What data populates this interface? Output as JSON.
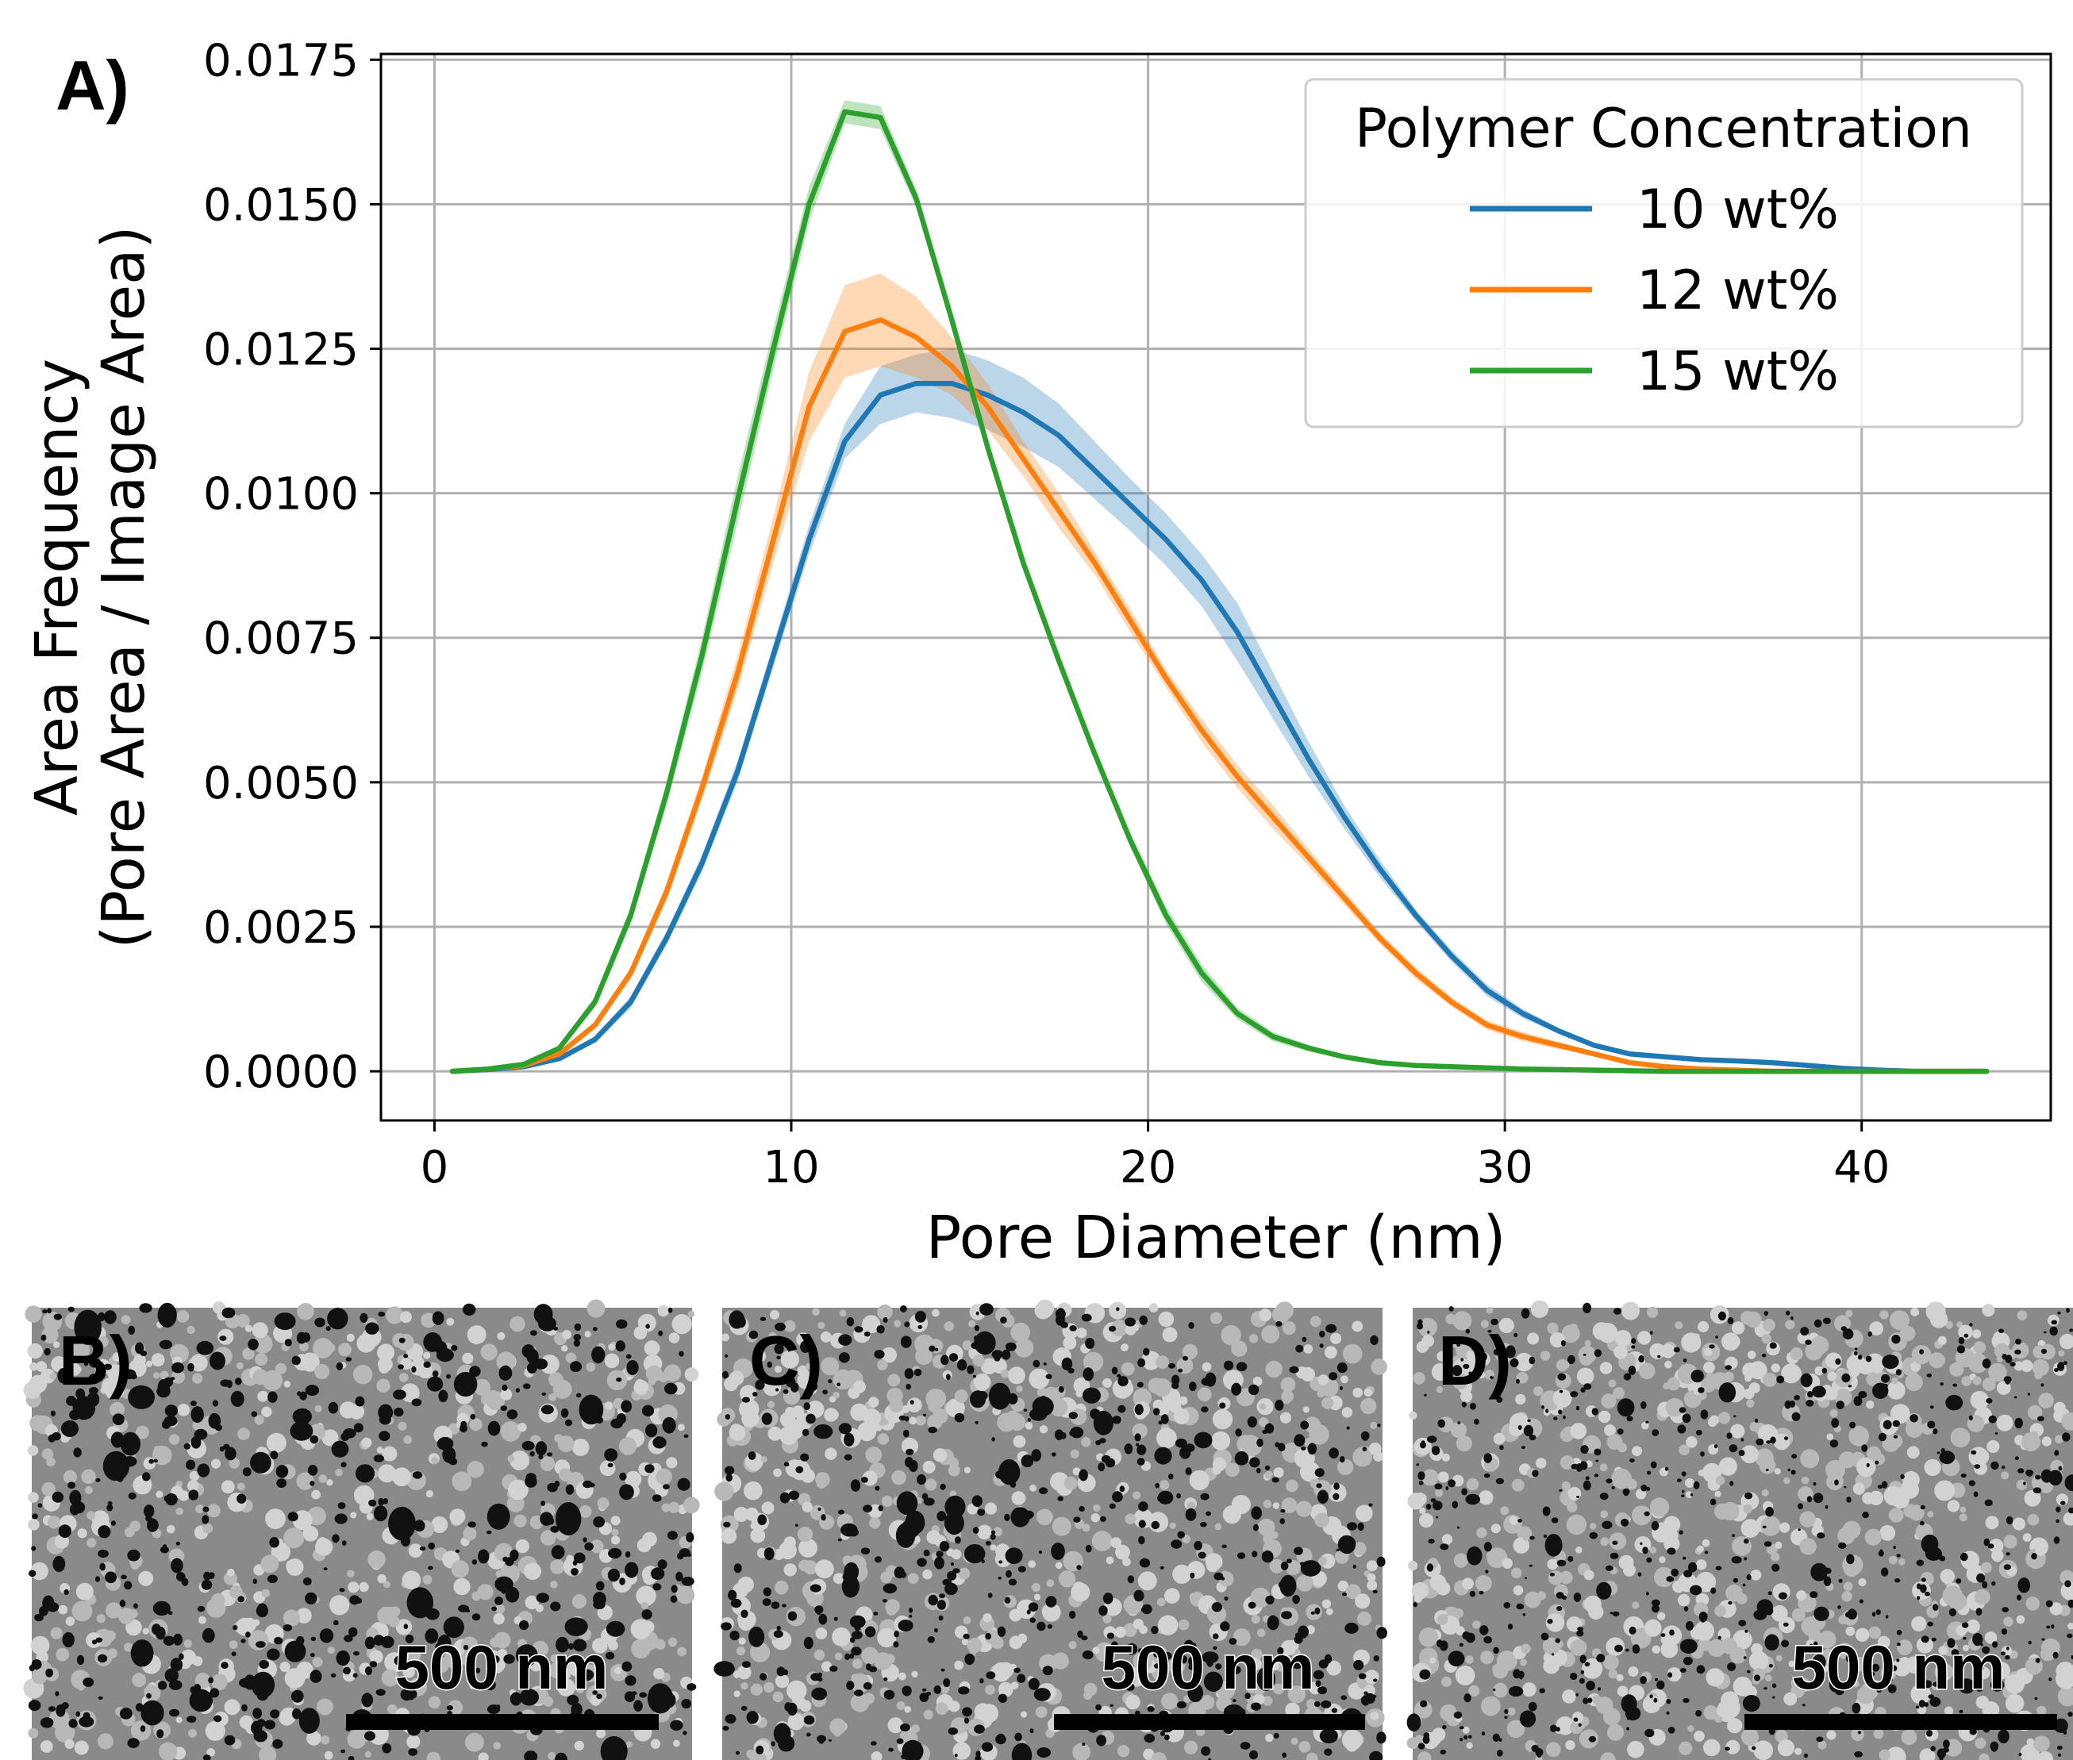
{
  "figure": {
    "panel_a_label": "A)",
    "sem_panels": [
      {
        "label": "B)",
        "scale_bar_text": "500 nm",
        "seed": 7,
        "pore_density": 1.0,
        "pore_size": 1.25
      },
      {
        "label": "C)",
        "scale_bar_text": "500 nm",
        "seed": 19,
        "pore_density": 1.1,
        "pore_size": 1.0
      },
      {
        "label": "D)",
        "scale_bar_text": "500 nm",
        "seed": 31,
        "pore_density": 1.2,
        "pore_size": 0.8
      }
    ]
  },
  "chart_data": {
    "type": "line",
    "title": "",
    "xlabel": "Pore Diameter (nm)",
    "ylabel_lines": [
      "Area Frequency",
      "(Pore Area / Image Area)"
    ],
    "xlim": [
      -1.5,
      45.3
    ],
    "ylim": [
      -0.00085,
      0.0176
    ],
    "xticks": [
      0,
      10,
      20,
      30,
      40
    ],
    "yticks": [
      "0.0000",
      "0.0025",
      "0.0050",
      "0.0075",
      "0.0100",
      "0.0125",
      "0.0150",
      "0.0175"
    ],
    "grid": true,
    "legend": {
      "title": "Polymer Concentration",
      "placement": "top-right"
    },
    "x": [
      0.5,
      1.5,
      2.5,
      3.5,
      4.5,
      5.5,
      6.5,
      7.5,
      8.5,
      9.5,
      10.5,
      11.5,
      12.5,
      13.5,
      14.5,
      15.5,
      16.5,
      17.5,
      18.5,
      19.5,
      20.5,
      21.5,
      22.5,
      23.5,
      24.5,
      25.5,
      26.5,
      27.5,
      28.5,
      29.5,
      30.5,
      31.5,
      32.5,
      33.5,
      34.5,
      35.5,
      36.5,
      37.5,
      38.5,
      39.5,
      40.5,
      41.5,
      42.5,
      43.5
    ],
    "series": [
      {
        "name": "10 wt%",
        "color": "#1f77b4",
        "values": [
          0.0,
          3e-05,
          8e-05,
          0.00022,
          0.00055,
          0.0012,
          0.0023,
          0.0036,
          0.0052,
          0.0072,
          0.0092,
          0.0109,
          0.0117,
          0.0119,
          0.0119,
          0.0117,
          0.0114,
          0.011,
          0.0104,
          0.0098,
          0.0092,
          0.0085,
          0.0076,
          0.0065,
          0.0054,
          0.0044,
          0.0035,
          0.0027,
          0.002,
          0.0014,
          0.001,
          0.0007,
          0.00045,
          0.0003,
          0.00025,
          0.0002,
          0.00018,
          0.00015,
          0.0001,
          5e-05,
          2e-05,
          0.0,
          0.0,
          0.0
        ],
        "band": [
          0.0,
          1e-05,
          2e-05,
          4e-05,
          6e-05,
          0.0001,
          0.00012,
          0.00015,
          0.00018,
          0.0002,
          0.00025,
          0.0003,
          0.0005,
          0.0005,
          0.0006,
          0.0006,
          0.0006,
          0.00055,
          0.0005,
          0.00045,
          0.00045,
          0.00045,
          0.0005,
          0.0004,
          0.0003,
          0.0002,
          0.00015,
          0.0001,
          0.0001,
          0.0001,
          8e-05,
          5e-05,
          4e-05,
          3e-05,
          3e-05,
          2e-05,
          2e-05,
          2e-05,
          1e-05,
          1e-05,
          0.0,
          0.0,
          0.0,
          0.0
        ]
      },
      {
        "name": "12 wt%",
        "color": "#ff7f0e",
        "values": [
          0.0,
          4e-05,
          0.0001,
          0.0003,
          0.0008,
          0.0017,
          0.0031,
          0.0049,
          0.0069,
          0.0092,
          0.0115,
          0.0128,
          0.013,
          0.0127,
          0.0122,
          0.0115,
          0.0106,
          0.0097,
          0.0088,
          0.0078,
          0.0068,
          0.0059,
          0.0051,
          0.0044,
          0.0037,
          0.003,
          0.0023,
          0.0017,
          0.0012,
          0.0008,
          0.0006,
          0.00045,
          0.0003,
          0.00015,
          8e-05,
          4e-05,
          2e-05,
          0.0,
          0.0,
          0.0,
          0.0,
          0.0,
          0.0,
          0.0
        ],
        "band": [
          0.0,
          1e-05,
          2e-05,
          4e-05,
          6e-05,
          0.0001,
          0.00015,
          0.0002,
          0.0003,
          0.0004,
          0.0006,
          0.0008,
          0.0008,
          0.0007,
          0.0005,
          0.0004,
          0.0003,
          0.0003,
          0.0002,
          0.0002,
          0.00015,
          0.0002,
          0.0002,
          0.0002,
          0.00015,
          0.00012,
          0.0001,
          0.0001,
          8e-05,
          8e-05,
          8e-05,
          6e-05,
          4e-05,
          3e-05,
          2e-05,
          1e-05,
          1e-05,
          0.0,
          0.0,
          0.0,
          0.0,
          0.0,
          0.0,
          0.0
        ]
      },
      {
        "name": "15 wt%",
        "color": "#2ca02c",
        "values": [
          0.0,
          4e-05,
          0.00012,
          0.0004,
          0.0012,
          0.0027,
          0.0048,
          0.0072,
          0.0099,
          0.0125,
          0.015,
          0.0166,
          0.0165,
          0.0151,
          0.013,
          0.0108,
          0.0088,
          0.0071,
          0.0055,
          0.004,
          0.0027,
          0.0017,
          0.001,
          0.0006,
          0.0004,
          0.00025,
          0.00015,
          0.0001,
          8e-05,
          6e-05,
          4e-05,
          3e-05,
          2e-05,
          1e-05,
          0.0,
          0.0,
          0.0,
          0.0,
          0.0,
          0.0,
          0.0,
          0.0,
          0.0,
          0.0
        ],
        "band": [
          0.0,
          1e-05,
          2e-05,
          5e-05,
          0.0001,
          0.00015,
          0.0002,
          0.0003,
          0.0004,
          0.00035,
          0.0003,
          0.0002,
          0.0002,
          0.00015,
          0.00012,
          0.0001,
          0.0001,
          0.0001,
          0.0001,
          0.00012,
          0.00015,
          0.00015,
          0.0001,
          8e-05,
          6e-05,
          4e-05,
          3e-05,
          2e-05,
          2e-05,
          1e-05,
          1e-05,
          1e-05,
          1e-05,
          0.0,
          0.0,
          0.0,
          0.0,
          0.0,
          0.0,
          0.0,
          0.0,
          0.0,
          0.0,
          0.0
        ]
      }
    ]
  }
}
